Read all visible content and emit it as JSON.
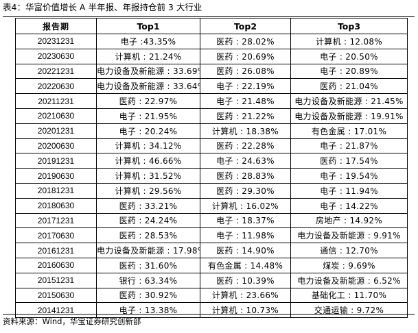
{
  "caption": "表4：华富价值增长 A 半年报、年报持仓前 3 大行业",
  "headers": [
    "报告期",
    "Top1",
    "Top2",
    "Top3"
  ],
  "rows": [
    {
      "date": "20231231",
      "top1": "电子 :43.35%",
      "top2": "医药 : 28.02%",
      "top3": "计算机 : 12.08%"
    },
    {
      "date": "20230630",
      "top1": "计算机 : 21.24%",
      "top2": "医药 : 20.69%",
      "top3": "电子 : 20.50%"
    },
    {
      "date": "20221231",
      "top1": "电力设备及新能源 : 33.69%",
      "top2": "医药 : 26.08%",
      "top3": "电子 : 20.89%"
    },
    {
      "date": "20220630",
      "top1": "电力设备及新能源 : 33.64%",
      "top2": "电子 : 22.19%",
      "top3": "医药 : 21.04%"
    },
    {
      "date": "20211231",
      "top1": "医药 : 22.97%",
      "top2": "电子 : 21.48%",
      "top3": "电力设备及新能源 : 21.45%"
    },
    {
      "date": "20210630",
      "top1": "电子 : 21.95%",
      "top2": "医药 : 21.22%",
      "top3": "电力设备及新能源 : 19.91%"
    },
    {
      "date": "20201231",
      "top1": "电子 : 20.24%",
      "top2": "计算机 : 18.38%",
      "top3": "有色金属 : 17.01%"
    },
    {
      "date": "20200630",
      "top1": "计算机 : 34.12%",
      "top2": "医药 : 22.28%",
      "top3": "电子 : 21.87%"
    },
    {
      "date": "20191231",
      "top1": "计算机 : 46.66%",
      "top2": "电子 : 24.63%",
      "top3": "医药 : 17.54%"
    },
    {
      "date": "20190630",
      "top1": "计算机 : 31.52%",
      "top2": "医药 : 28.83%",
      "top3": "电子 : 19.54%"
    },
    {
      "date": "20181231",
      "top1": "计算机 : 29.56%",
      "top2": "医药 : 29.30%",
      "top3": "电子 : 11.94%"
    },
    {
      "date": "20180630",
      "top1": "医药 : 33.21%",
      "top2": "计算机 : 16.02%",
      "top3": "电子 : 14.22%"
    },
    {
      "date": "20171231",
      "top1": "医药 : 24.24%",
      "top2": "电子 : 18.37%",
      "top3": "房地产 : 14.92%"
    },
    {
      "date": "20170630",
      "top1": "医药 : 28.53%",
      "top2": "电子 : 11.98%",
      "top3": "电力设备及新能源 : 9.91%"
    },
    {
      "date": "20161231",
      "top1": "电力设备及新能源 : 17.98%",
      "top2": "医药 : 14.90%",
      "top3": "通信 : 12.70%"
    },
    {
      "date": "20160630",
      "top1": "医药 : 31.60%",
      "top2": "有色金属 : 14.48%",
      "top3": "煤炭 : 9.69%"
    },
    {
      "date": "20151231",
      "top1": "银行 : 63.34%",
      "top2": "医药 : 10.39%",
      "top3": "电力设备及新能源 : 6.52%"
    },
    {
      "date": "20150630",
      "top1": "医药 : 30.92%",
      "top2": "计算机 : 23.66%",
      "top3": "基础化工 : 11.70%"
    },
    {
      "date": "20141231",
      "top1": "电子 : 13.38%",
      "top2": "计算机 : 10.73%",
      "top3": "交通运输 : 9.72%"
    }
  ],
  "source": "资料来源：Wind，华宝证券研究创新部"
}
